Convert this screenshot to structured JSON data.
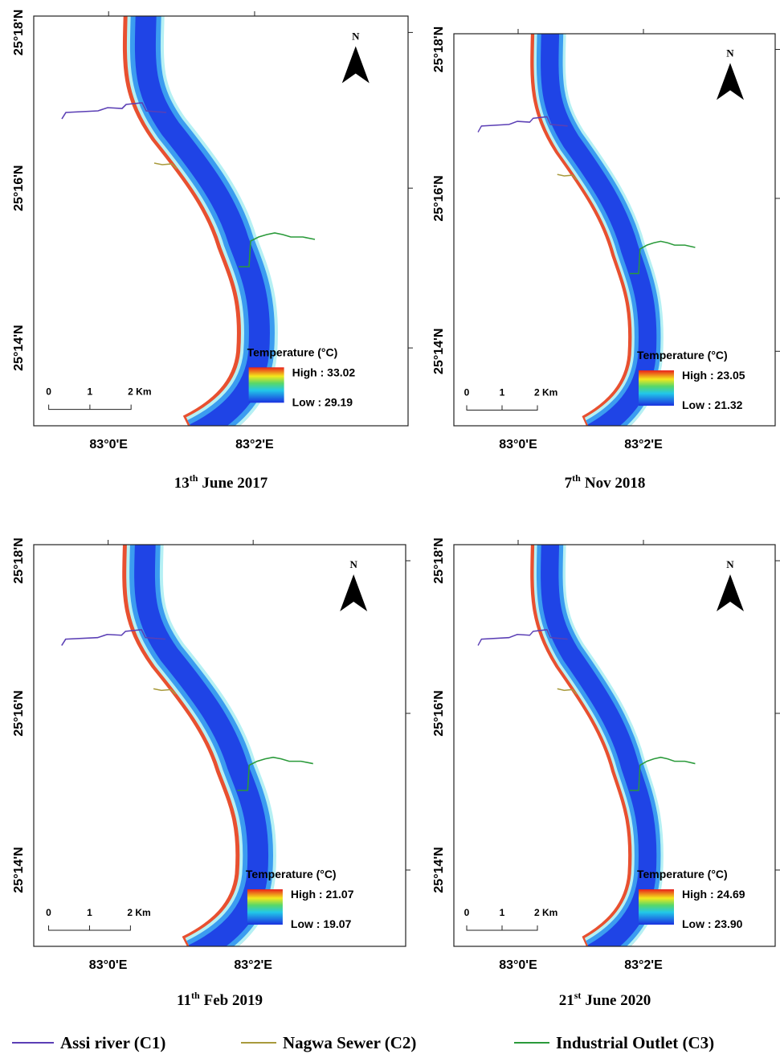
{
  "panels": [
    {
      "lat_labels": [
        "25°18'N",
        "25°16'N",
        "25°14'N"
      ],
      "lon_labels": [
        "83°0'E",
        "83°2'E"
      ],
      "north": "N",
      "scale_labels": [
        "0",
        "1",
        "2 Km"
      ],
      "legend_title": "Temperature (°C)",
      "high": "High : 33.02",
      "low": "Low : 29.19",
      "caption": {
        "day": "13",
        "suffix": "th",
        "rest": "June 2017"
      }
    },
    {
      "lat_labels": [
        "25°18'N",
        "25°16'N",
        "25°14'N"
      ],
      "lon_labels": [
        "83°0'E",
        "83°2'E"
      ],
      "north": "N",
      "scale_labels": [
        "0",
        "1",
        "2 Km"
      ],
      "legend_title": "Temperature (°C)",
      "high": "High : 23.05",
      "low": "Low : 21.32",
      "caption": {
        "day": "7",
        "suffix": "th",
        "rest": "Nov 2018"
      }
    },
    {
      "lat_labels": [
        "25°18'N",
        "25°16'N",
        "25°14'N"
      ],
      "lon_labels": [
        "83°0'E",
        "83°2'E"
      ],
      "north": "N",
      "scale_labels": [
        "0",
        "1",
        "2 Km"
      ],
      "legend_title": "Temperature (°C)",
      "high": "High : 21.07",
      "low": "Low : 19.07",
      "caption": {
        "day": "11",
        "suffix": "th",
        "rest": "Feb 2019"
      }
    },
    {
      "lat_labels": [
        "25°18'N",
        "25°16'N",
        "25°14'N"
      ],
      "lon_labels": [
        "83°0'E",
        "83°2'E"
      ],
      "north": "N",
      "scale_labels": [
        "0",
        "1",
        "2 Km"
      ],
      "legend_title": "Temperature (°C)",
      "high": "High : 24.69",
      "low": "Low : 23.90",
      "caption": {
        "day": "21",
        "suffix": "st",
        "rest": "June 2020"
      }
    }
  ],
  "legend": [
    {
      "name": "Assi river (C1)",
      "color": "#5b3fb5"
    },
    {
      "name": "Nagwa Sewer (C2)",
      "color": "#a89a3c"
    },
    {
      "name": "Industrial Outlet (C3)",
      "color": "#2a9a3a"
    }
  ]
}
